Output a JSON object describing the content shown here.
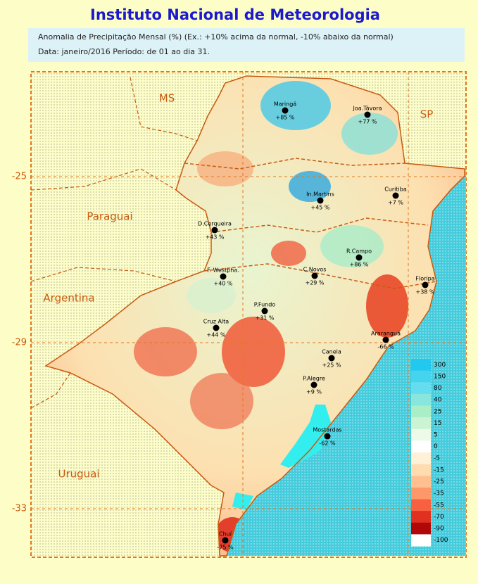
{
  "header": {
    "title": "Instituto Nacional de Meteorologia",
    "line1": "Anomalia de Precipitação Mensal (%) (Ex.: +10% acima da normal, -10% abaixo da normal)",
    "line2": "Data: janeiro/2016  Período: de 01 ao dia 31."
  },
  "regions": [
    "MS",
    "SP",
    "Paraguai",
    "Argentina",
    "Uruguai"
  ],
  "latitudes": [
    "-25",
    "-29",
    "-33"
  ],
  "stations": [
    {
      "name": "Maringá",
      "value": "+85 %"
    },
    {
      "name": "Joa.Távora",
      "value": "+77 %"
    },
    {
      "name": "In.Martins",
      "value": "+45 %"
    },
    {
      "name": "Curitiba",
      "value": "+7 %"
    },
    {
      "name": "D.Cerqueira",
      "value": "+43 %"
    },
    {
      "name": "R.Campo",
      "value": "+86 %"
    },
    {
      "name": "F. Westpha.",
      "value": "+40 %"
    },
    {
      "name": "C.Novos",
      "value": "+29 %"
    },
    {
      "name": "Floripa",
      "value": "+38 %"
    },
    {
      "name": "P.Fundo",
      "value": "+31 %"
    },
    {
      "name": "Cruz Alta",
      "value": "+44 %"
    },
    {
      "name": "Araranguá",
      "value": "-66 %"
    },
    {
      "name": "Canela",
      "value": "+25 %"
    },
    {
      "name": "P.Alegre",
      "value": "+9 %"
    },
    {
      "name": "Mostardas",
      "value": "-62 %"
    },
    {
      "name": "Chuí",
      "value": "-75 %"
    }
  ],
  "legend": [
    "300",
    "150",
    "80",
    "40",
    "25",
    "15",
    "5",
    "0",
    "-5",
    "-15",
    "-25",
    "-35",
    "-55",
    "-70",
    "-90",
    "-100"
  ]
}
